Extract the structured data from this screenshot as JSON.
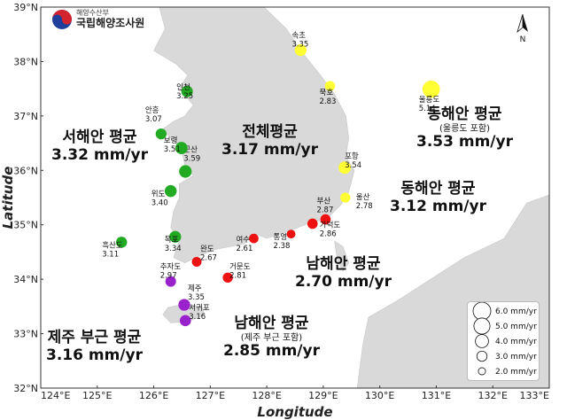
{
  "axes": {
    "x_title": "Longitude",
    "y_title": "Latitude",
    "x_ticks": [
      "124°E",
      "125°E",
      "126°E",
      "127°E",
      "128°E",
      "129°E",
      "130°E",
      "131°E",
      "132°E",
      "133°E"
    ],
    "y_ticks": [
      "39°N",
      "38°N",
      "37°N",
      "36°N",
      "35°N",
      "34°N",
      "33°N",
      "32°N"
    ]
  },
  "logo": {
    "small_text": "해양수산부",
    "big_text": "국립해양조사원",
    "emblem_icon": "taegeuk-emblem-icon"
  },
  "north_arrow": {
    "label": "N",
    "icon": "north-arrow-icon"
  },
  "region_labels": [
    {
      "id": "west",
      "title": "서해안 평균",
      "note": "",
      "value": "3.32 mm/yr"
    },
    {
      "id": "total",
      "title": "전체평균",
      "note": "",
      "value": "3.17 mm/yr"
    },
    {
      "id": "east-ulleung",
      "title": "동해안 평균",
      "note": "(울릉도 포함)",
      "value": "3.53 mm/yr"
    },
    {
      "id": "east",
      "title": "동해안 평균",
      "note": "",
      "value": "3.12 mm/yr"
    },
    {
      "id": "south",
      "title": "남해안 평균",
      "note": "",
      "value": "2.70 mm/yr"
    },
    {
      "id": "jeju",
      "title": "제주 부근 평균",
      "note": "",
      "value": "3.16 mm/yr"
    },
    {
      "id": "south-jeju",
      "title": "남해안 평균",
      "note": "(제주 부근 포함)",
      "value": "2.85 mm/yr"
    }
  ],
  "stations": [
    {
      "name": "속초",
      "rate": "3.35",
      "value": 3.35,
      "lon": 128.6,
      "lat": 38.21,
      "color": "#ffff33"
    },
    {
      "name": "묵호",
      "rate": "2.83",
      "value": 2.83,
      "lon": 129.12,
      "lat": 37.55,
      "color": "#ffff33"
    },
    {
      "name": "울릉도",
      "rate": "5.14",
      "value": 5.14,
      "lon": 130.91,
      "lat": 37.49,
      "color": "#ffff33"
    },
    {
      "name": "포항",
      "rate": "3.54",
      "value": 3.54,
      "lon": 129.38,
      "lat": 36.05,
      "color": "#ffff33"
    },
    {
      "name": "울산",
      "rate": "2.78",
      "value": 2.78,
      "lon": 129.39,
      "lat": 35.5,
      "color": "#ffff33"
    },
    {
      "name": "부산",
      "rate": "2.87",
      "value": 2.87,
      "lon": 129.04,
      "lat": 35.1,
      "color": "#ee1111"
    },
    {
      "name": "가덕도",
      "rate": "2.86",
      "value": 2.86,
      "lon": 128.81,
      "lat": 35.02,
      "color": "#ee1111"
    },
    {
      "name": "통영",
      "rate": "2.38",
      "value": 2.38,
      "lon": 128.43,
      "lat": 34.83,
      "color": "#ee1111"
    },
    {
      "name": "여수",
      "rate": "2.61",
      "value": 2.61,
      "lon": 127.77,
      "lat": 34.75,
      "color": "#ee1111"
    },
    {
      "name": "거문도",
      "rate": "2.81",
      "value": 2.81,
      "lon": 127.31,
      "lat": 34.03,
      "color": "#ee1111"
    },
    {
      "name": "완도",
      "rate": "2.67",
      "value": 2.67,
      "lon": 126.76,
      "lat": 34.32,
      "color": "#ee1111"
    },
    {
      "name": "추자도",
      "rate": "2.97",
      "value": 2.97,
      "lon": 126.3,
      "lat": 33.96,
      "color": "#9922cc"
    },
    {
      "name": "제주",
      "rate": "3.35",
      "value": 3.35,
      "lon": 126.54,
      "lat": 33.53,
      "color": "#9922cc"
    },
    {
      "name": "서귀포",
      "rate": "3.16",
      "value": 3.16,
      "lon": 126.56,
      "lat": 33.24,
      "color": "#9922cc"
    },
    {
      "name": "흑산도",
      "rate": "3.11",
      "value": 3.11,
      "lon": 125.43,
      "lat": 34.68,
      "color": "#22aa22"
    },
    {
      "name": "목포",
      "rate": "3.34",
      "value": 3.34,
      "lon": 126.38,
      "lat": 34.78,
      "color": "#22aa22"
    },
    {
      "name": "위도",
      "rate": "3.40",
      "value": 3.4,
      "lon": 126.3,
      "lat": 35.62,
      "color": "#22aa22"
    },
    {
      "name": "군산",
      "rate": "3.59",
      "value": 3.59,
      "lon": 126.56,
      "lat": 35.98,
      "color": "#22aa22"
    },
    {
      "name": "보령",
      "rate": "3.51",
      "value": 3.51,
      "lon": 126.49,
      "lat": 36.41,
      "color": "#22aa22"
    },
    {
      "name": "안흥",
      "rate": "3.07",
      "value": 3.07,
      "lon": 126.13,
      "lat": 36.67,
      "color": "#22aa22"
    },
    {
      "name": "인천",
      "rate": "3.25",
      "value": 3.25,
      "lon": 126.59,
      "lat": 37.45,
      "color": "#22aa22"
    }
  ],
  "legend": {
    "items": [
      {
        "label": "6.0 mm/yr",
        "value": 6.0
      },
      {
        "label": "5.0 mm/yr",
        "value": 5.0
      },
      {
        "label": "4.0 mm/yr",
        "value": 4.0
      },
      {
        "label": "3.0 mm/yr",
        "value": 3.0
      },
      {
        "label": "2.0 mm/yr",
        "value": 2.0
      }
    ]
  },
  "colors": {
    "land": "#d9d9d9",
    "sea": "#ffffff",
    "west": "#22aa22",
    "south": "#ee1111",
    "jeju": "#9922cc",
    "east": "#ffff33"
  }
}
